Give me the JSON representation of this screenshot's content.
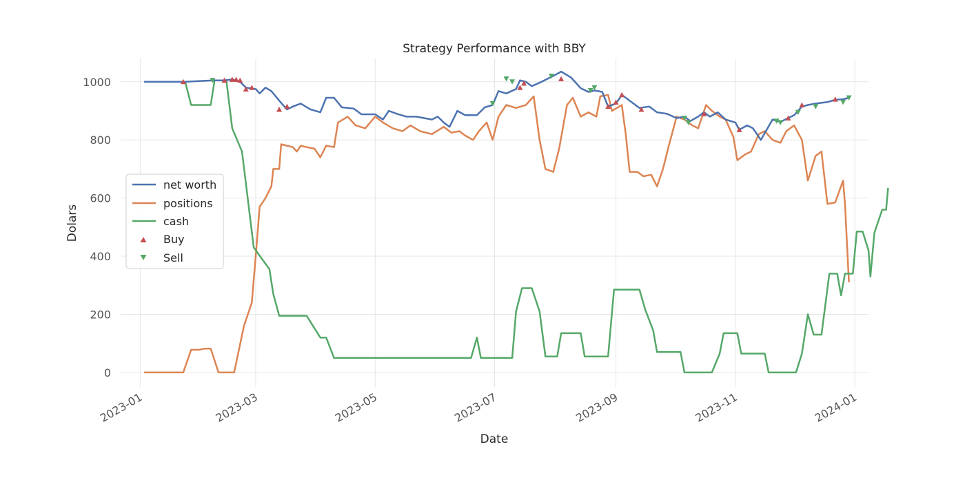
{
  "chart_data": {
    "type": "line",
    "title": "Strategy Performance with BBY",
    "xlabel": "Date",
    "ylabel": "Dolars",
    "ylim": [
      -50,
      1080
    ],
    "xlim": [
      "2022-12-22",
      "2024-01-08"
    ],
    "yticks": [
      0,
      200,
      400,
      600,
      800,
      1000
    ],
    "xticks": [
      "2023-01",
      "2023-03",
      "2023-05",
      "2023-07",
      "2023-09",
      "2023-11",
      "2024-01"
    ],
    "grid": true,
    "legend_position": "center-left",
    "colors": {
      "net_worth": "#4c72b0",
      "positions": "#dd8452",
      "cash": "#55a868",
      "buy": "#c44e52",
      "sell": "#55a868"
    },
    "series": [
      {
        "name": "net worth",
        "key": "net_worth",
        "points": [
          [
            "2023-01-03",
            1000
          ],
          [
            "2023-01-24",
            1000
          ],
          [
            "2023-02-07",
            1005
          ],
          [
            "2023-02-13",
            1005
          ],
          [
            "2023-02-17",
            1008
          ],
          [
            "2023-02-21",
            1000
          ],
          [
            "2023-02-24",
            980
          ],
          [
            "2023-03-01",
            975
          ],
          [
            "2023-03-03",
            960
          ],
          [
            "2023-03-06",
            980
          ],
          [
            "2023-03-09",
            968
          ],
          [
            "2023-03-13",
            935
          ],
          [
            "2023-03-17",
            905
          ],
          [
            "2023-03-20",
            915
          ],
          [
            "2023-03-24",
            925
          ],
          [
            "2023-03-29",
            905
          ],
          [
            "2023-04-03",
            895
          ],
          [
            "2023-04-06",
            945
          ],
          [
            "2023-04-10",
            945
          ],
          [
            "2023-04-14",
            912
          ],
          [
            "2023-04-20",
            908
          ],
          [
            "2023-04-24",
            888
          ],
          [
            "2023-05-01",
            888
          ],
          [
            "2023-05-05",
            870
          ],
          [
            "2023-05-08",
            900
          ],
          [
            "2023-05-12",
            890
          ],
          [
            "2023-05-17",
            880
          ],
          [
            "2023-05-22",
            880
          ],
          [
            "2023-05-30",
            870
          ],
          [
            "2023-06-02",
            880
          ],
          [
            "2023-06-05",
            860
          ],
          [
            "2023-06-08",
            845
          ],
          [
            "2023-06-12",
            900
          ],
          [
            "2023-06-16",
            885
          ],
          [
            "2023-06-22",
            885
          ],
          [
            "2023-06-26",
            912
          ],
          [
            "2023-06-30",
            920
          ],
          [
            "2023-07-03",
            968
          ],
          [
            "2023-07-07",
            960
          ],
          [
            "2023-07-12",
            975
          ],
          [
            "2023-07-14",
            1005
          ],
          [
            "2023-07-17",
            1000
          ],
          [
            "2023-07-20",
            985
          ],
          [
            "2023-07-25",
            1000
          ],
          [
            "2023-07-31",
            1020
          ],
          [
            "2023-08-04",
            1035
          ],
          [
            "2023-08-09",
            1015
          ],
          [
            "2023-08-14",
            978
          ],
          [
            "2023-08-18",
            965
          ],
          [
            "2023-08-21",
            970
          ],
          [
            "2023-08-25",
            965
          ],
          [
            "2023-08-28",
            915
          ],
          [
            "2023-09-01",
            925
          ],
          [
            "2023-09-04",
            955
          ],
          [
            "2023-09-08",
            935
          ],
          [
            "2023-09-13",
            910
          ],
          [
            "2023-09-18",
            915
          ],
          [
            "2023-09-22",
            895
          ],
          [
            "2023-09-27",
            890
          ],
          [
            "2023-10-02",
            875
          ],
          [
            "2023-10-06",
            880
          ],
          [
            "2023-10-09",
            865
          ],
          [
            "2023-10-13",
            880
          ],
          [
            "2023-10-16",
            895
          ],
          [
            "2023-10-19",
            880
          ],
          [
            "2023-10-23",
            895
          ],
          [
            "2023-10-27",
            870
          ],
          [
            "2023-11-01",
            860
          ],
          [
            "2023-11-03",
            835
          ],
          [
            "2023-11-07",
            850
          ],
          [
            "2023-11-10",
            840
          ],
          [
            "2023-11-14",
            800
          ],
          [
            "2023-11-17",
            835
          ],
          [
            "2023-11-20",
            870
          ],
          [
            "2023-11-24",
            862
          ],
          [
            "2023-11-28",
            875
          ],
          [
            "2023-12-01",
            885
          ],
          [
            "2023-12-05",
            915
          ],
          [
            "2023-12-08",
            920
          ],
          [
            "2023-12-12",
            925
          ],
          [
            "2023-12-18",
            930
          ],
          [
            "2023-12-22",
            938
          ],
          [
            "2023-12-26",
            940
          ],
          [
            "2023-12-29",
            945
          ]
        ]
      },
      {
        "name": "positions",
        "key": "positions",
        "points": [
          [
            "2023-01-03",
            0
          ],
          [
            "2023-01-10",
            0
          ],
          [
            "2023-01-17",
            0
          ],
          [
            "2023-01-23",
            0
          ],
          [
            "2023-01-27",
            78
          ],
          [
            "2023-01-31",
            78
          ],
          [
            "2023-02-03",
            82
          ],
          [
            "2023-02-06",
            82
          ],
          [
            "2023-02-10",
            0
          ],
          [
            "2023-02-14",
            0
          ],
          [
            "2023-02-18",
            0
          ],
          [
            "2023-02-23",
            160
          ],
          [
            "2023-02-27",
            240
          ],
          [
            "2023-03-01",
            400
          ],
          [
            "2023-03-03",
            570
          ],
          [
            "2023-03-06",
            600
          ],
          [
            "2023-03-09",
            640
          ],
          [
            "2023-03-10",
            700
          ],
          [
            "2023-03-13",
            700
          ],
          [
            "2023-03-14",
            785
          ],
          [
            "2023-03-17",
            780
          ],
          [
            "2023-03-20",
            775
          ],
          [
            "2023-03-22",
            760
          ],
          [
            "2023-03-24",
            780
          ],
          [
            "2023-03-27",
            775
          ],
          [
            "2023-03-31",
            770
          ],
          [
            "2023-04-03",
            740
          ],
          [
            "2023-04-06",
            780
          ],
          [
            "2023-04-10",
            775
          ],
          [
            "2023-04-12",
            860
          ],
          [
            "2023-04-17",
            880
          ],
          [
            "2023-04-21",
            850
          ],
          [
            "2023-04-26",
            840
          ],
          [
            "2023-05-01",
            880
          ],
          [
            "2023-05-05",
            860
          ],
          [
            "2023-05-10",
            840
          ],
          [
            "2023-05-15",
            830
          ],
          [
            "2023-05-19",
            850
          ],
          [
            "2023-05-24",
            830
          ],
          [
            "2023-05-30",
            820
          ],
          [
            "2023-06-05",
            845
          ],
          [
            "2023-06-09",
            825
          ],
          [
            "2023-06-13",
            830
          ],
          [
            "2023-06-16",
            815
          ],
          [
            "2023-06-20",
            800
          ],
          [
            "2023-06-23",
            830
          ],
          [
            "2023-06-27",
            860
          ],
          [
            "2023-06-30",
            800
          ],
          [
            "2023-07-03",
            880
          ],
          [
            "2023-07-07",
            920
          ],
          [
            "2023-07-12",
            910
          ],
          [
            "2023-07-17",
            920
          ],
          [
            "2023-07-21",
            950
          ],
          [
            "2023-07-24",
            800
          ],
          [
            "2023-07-27",
            700
          ],
          [
            "2023-07-31",
            690
          ],
          [
            "2023-08-03",
            770
          ],
          [
            "2023-08-07",
            920
          ],
          [
            "2023-08-10",
            945
          ],
          [
            "2023-08-14",
            880
          ],
          [
            "2023-08-18",
            895
          ],
          [
            "2023-08-22",
            880
          ],
          [
            "2023-08-24",
            950
          ],
          [
            "2023-08-28",
            955
          ],
          [
            "2023-08-30",
            900
          ],
          [
            "2023-09-04",
            920
          ],
          [
            "2023-09-06",
            820
          ],
          [
            "2023-09-08",
            690
          ],
          [
            "2023-09-12",
            690
          ],
          [
            "2023-09-15",
            675
          ],
          [
            "2023-09-19",
            680
          ],
          [
            "2023-09-22",
            640
          ],
          [
            "2023-09-25",
            700
          ],
          [
            "2023-09-28",
            780
          ],
          [
            "2023-10-02",
            880
          ],
          [
            "2023-10-06",
            870
          ],
          [
            "2023-10-10",
            850
          ],
          [
            "2023-10-13",
            840
          ],
          [
            "2023-10-17",
            920
          ],
          [
            "2023-10-20",
            900
          ],
          [
            "2023-10-24",
            880
          ],
          [
            "2023-10-27",
            870
          ],
          [
            "2023-10-31",
            810
          ],
          [
            "2023-11-02",
            730
          ],
          [
            "2023-11-06",
            750
          ],
          [
            "2023-11-09",
            760
          ],
          [
            "2023-11-13",
            820
          ],
          [
            "2023-11-16",
            830
          ],
          [
            "2023-11-20",
            800
          ],
          [
            "2023-11-24",
            790
          ],
          [
            "2023-11-27",
            830
          ],
          [
            "2023-12-01",
            850
          ],
          [
            "2023-12-05",
            800
          ],
          [
            "2023-12-08",
            660
          ],
          [
            "2023-12-12",
            745
          ],
          [
            "2023-12-15",
            760
          ],
          [
            "2023-12-18",
            580
          ],
          [
            "2023-12-22",
            585
          ],
          [
            "2023-12-26",
            660
          ],
          [
            "2023-12-27",
            580
          ],
          [
            "2023-12-29",
            310
          ]
        ]
      },
      {
        "name": "cash",
        "key": "cash",
        "points": [
          [
            "2023-01-03",
            1000
          ],
          [
            "2023-01-24",
            1000
          ],
          [
            "2023-01-27",
            920
          ],
          [
            "2023-02-06",
            920
          ],
          [
            "2023-02-08",
            1005
          ],
          [
            "2023-02-14",
            1005
          ],
          [
            "2023-02-17",
            840
          ],
          [
            "2023-02-22",
            760
          ],
          [
            "2023-02-28",
            430
          ],
          [
            "2023-03-08",
            355
          ],
          [
            "2023-03-10",
            270
          ],
          [
            "2023-03-13",
            195
          ],
          [
            "2023-03-27",
            195
          ],
          [
            "2023-04-03",
            120
          ],
          [
            "2023-04-06",
            120
          ],
          [
            "2023-04-10",
            50
          ],
          [
            "2023-06-19",
            50
          ],
          [
            "2023-06-22",
            120
          ],
          [
            "2023-06-24",
            50
          ],
          [
            "2023-07-10",
            50
          ],
          [
            "2023-07-12",
            210
          ],
          [
            "2023-07-15",
            290
          ],
          [
            "2023-07-20",
            290
          ],
          [
            "2023-07-24",
            210
          ],
          [
            "2023-07-27",
            55
          ],
          [
            "2023-08-02",
            55
          ],
          [
            "2023-08-04",
            135
          ],
          [
            "2023-08-14",
            135
          ],
          [
            "2023-08-16",
            55
          ],
          [
            "2023-08-28",
            55
          ],
          [
            "2023-08-31",
            285
          ],
          [
            "2023-09-13",
            285
          ],
          [
            "2023-09-16",
            215
          ],
          [
            "2023-09-20",
            145
          ],
          [
            "2023-09-22",
            70
          ],
          [
            "2023-10-04",
            70
          ],
          [
            "2023-10-06",
            0
          ],
          [
            "2023-10-20",
            0
          ],
          [
            "2023-10-24",
            65
          ],
          [
            "2023-10-26",
            135
          ],
          [
            "2023-11-02",
            135
          ],
          [
            "2023-11-04",
            65
          ],
          [
            "2023-11-16",
            65
          ],
          [
            "2023-11-18",
            0
          ],
          [
            "2023-12-02",
            0
          ],
          [
            "2023-12-05",
            65
          ],
          [
            "2023-12-08",
            200
          ],
          [
            "2023-12-11",
            130
          ],
          [
            "2023-12-15",
            130
          ],
          [
            "2023-12-19",
            340
          ],
          [
            "2023-12-23",
            340
          ],
          [
            "2023-12-25",
            265
          ],
          [
            "2023-12-27",
            340
          ],
          [
            "2023-12-31",
            340
          ],
          [
            "2024-01-02",
            485
          ],
          [
            "2024-01-05",
            485
          ],
          [
            "2024-01-08",
            420
          ],
          [
            "2024-01-09",
            330
          ],
          [
            "2024-01-11",
            480
          ],
          [
            "2024-01-15",
            560
          ],
          [
            "2024-01-17",
            560
          ],
          [
            "2024-01-18",
            635
          ]
        ]
      }
    ],
    "buy_markers": [
      [
        "2023-01-23",
        1000
      ],
      [
        "2023-02-13",
        1005
      ],
      [
        "2023-02-17",
        1008
      ],
      [
        "2023-02-19",
        1008
      ],
      [
        "2023-02-21",
        1005
      ],
      [
        "2023-02-24",
        975
      ],
      [
        "2023-02-27",
        980
      ],
      [
        "2023-03-13",
        905
      ],
      [
        "2023-03-17",
        915
      ],
      [
        "2023-07-14",
        980
      ],
      [
        "2023-07-16",
        995
      ],
      [
        "2023-08-04",
        1010
      ],
      [
        "2023-08-28",
        915
      ],
      [
        "2023-09-01",
        930
      ],
      [
        "2023-09-04",
        955
      ],
      [
        "2023-09-14",
        905
      ],
      [
        "2023-10-16",
        890
      ],
      [
        "2023-11-03",
        835
      ],
      [
        "2023-11-28",
        875
      ],
      [
        "2023-12-05",
        920
      ],
      [
        "2023-12-22",
        940
      ]
    ],
    "sell_markers": [
      [
        "2023-02-07",
        1005
      ],
      [
        "2023-06-30",
        925
      ],
      [
        "2023-07-07",
        1010
      ],
      [
        "2023-07-10",
        1000
      ],
      [
        "2023-07-30",
        1020
      ],
      [
        "2023-08-19",
        970
      ],
      [
        "2023-08-21",
        980
      ],
      [
        "2023-10-06",
        875
      ],
      [
        "2023-10-08",
        860
      ],
      [
        "2023-11-22",
        865
      ],
      [
        "2023-11-24",
        860
      ],
      [
        "2023-12-03",
        895
      ],
      [
        "2023-12-12",
        915
      ],
      [
        "2023-12-26",
        930
      ],
      [
        "2023-12-29",
        945
      ]
    ],
    "legend": [
      "net worth",
      "positions",
      "cash",
      "Buy",
      "Sell"
    ]
  }
}
